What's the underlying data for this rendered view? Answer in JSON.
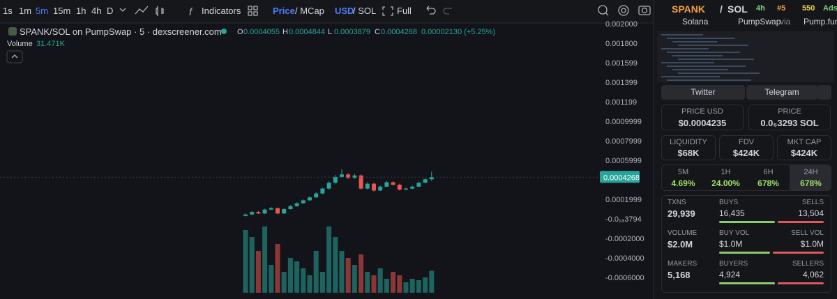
{
  "toolbar": {
    "intervals": [
      "1s",
      "1m",
      "5m",
      "15m",
      "1h",
      "4h",
      "D"
    ],
    "indicators": "Indicators",
    "price": "Price",
    "mcap": "/ MCap",
    "usd": "USD",
    "sol": "/ SOL",
    "full": "Full"
  },
  "chart": {
    "legend": "SPANK/SOL on PumpSwap · 5 · dexscreener.com",
    "o": "O",
    "h": "H",
    "l": "L",
    "c": "C",
    "change": "0.00002130 (+5.25%)",
    "volume_label": "Volume",
    "volume_legend_value": "31.471K",
    "ylim": [
      -0.000757,
      0.002007
    ],
    "yticks": [
      {
        "value": 0.002,
        "label": "0.002000"
      },
      {
        "value": 0.0018,
        "label": "0.001800"
      },
      0.001599,
      0.001399,
      0.001199,
      0.0009999,
      0.0007999,
      0.0005999,
      0.0001999,
      {
        "value": -3.794e-19,
        "label": "-0.0₁₈3794"
      },
      {
        "value": -0.0002,
        "label": "-0.0002000"
      },
      {
        "value": -0.0004,
        "label": "-0.0004000"
      },
      {
        "value": -0.0006,
        "label": "-0.0006000"
      }
    ],
    "candles": {
      "open": [
        3e-05,
        4.5e-05,
        7e-05,
        5.5e-05,
        9.5e-05,
        0.00011,
        5.5e-05,
        0.0001,
        0.00013,
        0.00016,
        0.00019,
        0.00022,
        0.00026,
        0.00031,
        0.00037,
        0.00043,
        0.000455,
        0.00042,
        0.000445,
        0.00031,
        0.00036,
        0.00029,
        0.00033,
        0.000375,
        0.00035,
        0.0003,
        0.00031,
        0.00033,
        0.00037,
        0.0004055
      ],
      "high": [
        5.5e-05,
        8e-05,
        8e-05,
        0.000105,
        0.00012,
        0.000115,
        0.00011,
        0.00014,
        0.00017,
        0.0002,
        0.00023,
        0.000275,
        0.00032,
        0.000385,
        0.00045,
        0.00051,
        0.00047,
        0.00046,
        0.000455,
        0.000375,
        0.00037,
        0.00034,
        0.00039,
        0.000385,
        0.00036,
        0.00032,
        0.00034,
        0.00038,
        0.000415,
        0.0004844
      ],
      "low": [
        2.5e-05,
        4e-05,
        5e-05,
        5e-05,
        9e-05,
        4.5e-05,
        5e-05,
        9.5e-05,
        0.000125,
        0.000155,
        0.000185,
        0.000215,
        0.000255,
        0.0003,
        0.00036,
        0.00042,
        0.00041,
        0.00041,
        0.0003,
        0.0003,
        0.00028,
        0.000285,
        0.000325,
        0.00034,
        0.00029,
        0.000295,
        0.000305,
        0.000325,
        0.000365,
        0.0003879
      ],
      "close": [
        4.5e-05,
        7e-05,
        5.5e-05,
        9.5e-05,
        0.00011,
        5.5e-05,
        0.0001,
        0.00013,
        0.00016,
        0.00019,
        0.00022,
        0.00026,
        0.00031,
        0.00037,
        0.00043,
        0.000455,
        0.00042,
        0.000445,
        0.00031,
        0.00036,
        0.00029,
        0.00033,
        0.000375,
        0.00035,
        0.0003,
        0.00031,
        0.00033,
        0.00037,
        0.0004055,
        0.0004268
      ]
    },
    "volume": [
      90,
      80,
      60,
      95,
      40,
      70,
      30,
      50,
      45,
      35,
      25,
      60,
      30,
      95,
      80,
      60,
      50,
      40,
      55,
      30,
      25,
      35,
      20,
      30,
      25,
      15,
      20,
      18,
      22,
      31.471
    ]
  },
  "panel": {
    "base": "SPANK",
    "slash": "/",
    "quote": "SOL",
    "timeframe": "4h",
    "rank": "#5",
    "boosts": "550",
    "ads": "Ads",
    "chain": "Solana",
    "dex": "PumpSwap",
    "via": "via",
    "launchpad": "Pump.fun",
    "links": [
      "Twitter",
      "Telegram"
    ],
    "price_usd": {
      "label": "PRICE USD",
      "value": "$0.0004235"
    },
    "price": {
      "label": "PRICE",
      "value": "0.0₅3293 SOL"
    },
    "metrics": [
      {
        "label": "LIQUIDITY",
        "value": "$68K"
      },
      {
        "label": "FDV",
        "value": "$424K"
      },
      {
        "label": "MKT CAP",
        "value": "$424K"
      }
    ],
    "changes": [
      {
        "period": "5M",
        "value": "4.69%"
      },
      {
        "period": "1H",
        "value": "24.00%"
      },
      {
        "period": "6H",
        "value": "678%"
      },
      {
        "period": "24H",
        "value": "678%"
      }
    ],
    "stats": [
      {
        "label": "TXNS",
        "value": "29,939",
        "left_label": "BUYS",
        "left": "16,435",
        "right_label": "SELLS",
        "right": "13,504"
      },
      {
        "label": "VOLUME",
        "value": "$2.0M",
        "left_label": "BUY VOL",
        "left": "$1.0M",
        "right_label": "SELL VOL",
        "right": "$1.0M"
      },
      {
        "label": "MAKERS",
        "value": "5,168",
        "left_label": "BUYERS",
        "left": "4,924",
        "right_label": "SELLERS",
        "right": "4,062"
      }
    ]
  }
}
